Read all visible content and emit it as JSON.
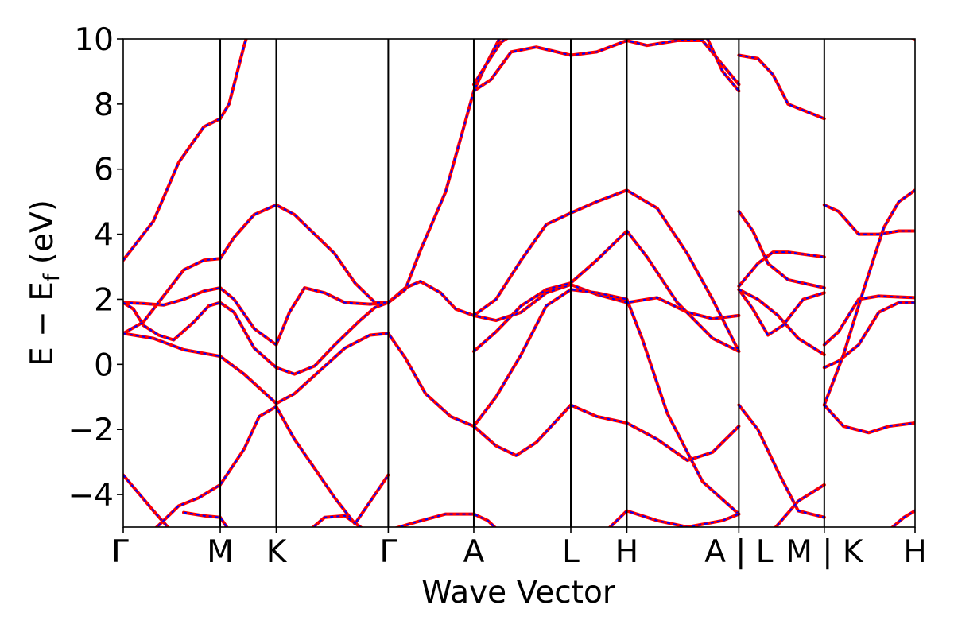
{
  "chart_data": {
    "type": "line",
    "title": "",
    "xlabel": "Wave Vector",
    "ylabel": "E − E",
    "ylabel_sub": "f",
    "ylabel_unit": " (eV)",
    "ylim": [
      -5,
      10
    ],
    "yticks": [
      10,
      8,
      6,
      4,
      2,
      0,
      -2,
      -4
    ],
    "ytick_labels": [
      "10",
      "8",
      "6",
      "4",
      "2",
      "0",
      "−2",
      "−4"
    ],
    "xlim": [
      0,
      7.86
    ],
    "kpoints": [
      {
        "x": 0.0,
        "label": "Γ"
      },
      {
        "x": 0.963,
        "label": "M"
      },
      {
        "x": 1.519,
        "label": "K"
      },
      {
        "x": 2.631,
        "label": "Γ"
      },
      {
        "x": 3.48,
        "label": "A"
      },
      {
        "x": 4.443,
        "label": "L"
      },
      {
        "x": 4.999,
        "label": "H"
      },
      {
        "x": 6.111,
        "label": "A | L"
      },
      {
        "x": 6.959,
        "label": "M | K"
      },
      {
        "x": 7.86,
        "label": "H"
      }
    ],
    "kpoint_labels_extra": [
      {
        "x": 6.64,
        "label": "M"
      },
      {
        "x": 7.35,
        "label": "K"
      }
    ],
    "grid": false,
    "legend": "none",
    "colors": {
      "band_solid": "#ff0000",
      "band_dashed": "#0000ff",
      "kline": "#000000"
    },
    "series": [
      {
        "values": [
          [
            0.0,
            3.2
          ],
          [
            0.3,
            4.4
          ],
          [
            0.55,
            6.2
          ],
          [
            0.8,
            7.3
          ],
          [
            0.963,
            7.55
          ],
          [
            1.05,
            8.0
          ],
          [
            1.2,
            9.8
          ],
          [
            1.27,
            10.5
          ]
        ]
      },
      {
        "values": [
          [
            0.0,
            1.9
          ],
          [
            0.2,
            1.87
          ],
          [
            0.4,
            1.82
          ],
          [
            0.6,
            2.0
          ],
          [
            0.8,
            2.25
          ],
          [
            0.963,
            2.35
          ],
          [
            1.1,
            2.0
          ],
          [
            1.3,
            1.1
          ],
          [
            1.519,
            0.6
          ],
          [
            1.65,
            1.6
          ],
          [
            1.8,
            2.35
          ],
          [
            2.0,
            2.2
          ],
          [
            2.2,
            1.9
          ],
          [
            2.45,
            1.85
          ],
          [
            2.631,
            1.9
          ],
          [
            2.8,
            2.35
          ],
          [
            2.95,
            2.55
          ],
          [
            3.15,
            2.2
          ],
          [
            3.3,
            1.7
          ],
          [
            3.48,
            1.5
          ],
          [
            3.7,
            1.35
          ],
          [
            3.95,
            1.6
          ],
          [
            4.2,
            2.2
          ],
          [
            4.443,
            2.45
          ],
          [
            4.7,
            2.15
          ],
          [
            4.999,
            1.9
          ],
          [
            5.3,
            2.05
          ],
          [
            5.6,
            1.6
          ],
          [
            5.85,
            1.4
          ],
          [
            6.111,
            1.5
          ]
        ]
      },
      {
        "values": [
          [
            0.0,
            1.9
          ],
          [
            0.1,
            1.7
          ],
          [
            0.2,
            1.2
          ],
          [
            0.35,
            0.9
          ],
          [
            0.5,
            0.75
          ],
          [
            0.7,
            1.3
          ],
          [
            0.85,
            1.8
          ],
          [
            0.963,
            1.9
          ],
          [
            1.1,
            1.6
          ],
          [
            1.3,
            0.5
          ],
          [
            1.519,
            -0.1
          ],
          [
            1.7,
            -0.3
          ],
          [
            1.9,
            -0.05
          ],
          [
            2.1,
            0.6
          ],
          [
            2.35,
            1.35
          ],
          [
            2.5,
            1.75
          ],
          [
            2.631,
            1.9
          ]
        ]
      },
      {
        "values": [
          [
            0.0,
            0.95
          ],
          [
            0.2,
            1.3
          ],
          [
            0.4,
            2.1
          ],
          [
            0.6,
            2.9
          ],
          [
            0.8,
            3.2
          ],
          [
            0.963,
            3.25
          ],
          [
            1.1,
            3.9
          ],
          [
            1.3,
            4.6
          ],
          [
            1.519,
            4.9
          ],
          [
            1.7,
            4.6
          ],
          [
            1.9,
            4.0
          ],
          [
            2.1,
            3.4
          ],
          [
            2.3,
            2.5
          ],
          [
            2.5,
            1.9
          ],
          [
            2.631,
            1.9
          ]
        ]
      },
      {
        "values": [
          [
            0.0,
            0.95
          ],
          [
            0.3,
            0.8
          ],
          [
            0.6,
            0.45
          ],
          [
            0.963,
            0.25
          ],
          [
            1.2,
            -0.3
          ],
          [
            1.519,
            -1.2
          ],
          [
            1.7,
            -0.9
          ],
          [
            1.95,
            -0.2
          ],
          [
            2.2,
            0.5
          ],
          [
            2.45,
            0.9
          ],
          [
            2.631,
            0.95
          ],
          [
            2.8,
            0.2
          ],
          [
            3.0,
            -0.9
          ],
          [
            3.25,
            -1.6
          ],
          [
            3.48,
            -1.9
          ],
          [
            3.7,
            -2.5
          ],
          [
            3.9,
            -2.8
          ],
          [
            4.1,
            -2.4
          ],
          [
            4.443,
            -1.25
          ],
          [
            4.7,
            -1.6
          ],
          [
            4.999,
            -1.8
          ],
          [
            5.3,
            -2.3
          ],
          [
            5.6,
            -2.95
          ],
          [
            5.85,
            -2.7
          ],
          [
            6.111,
            -1.9
          ]
        ]
      },
      {
        "values": [
          [
            0.0,
            -3.4
          ],
          [
            0.3,
            -4.5
          ],
          [
            0.5,
            -5.2
          ]
        ]
      },
      {
        "values": [
          [
            0.3,
            -5.1
          ],
          [
            0.55,
            -4.35
          ],
          [
            0.75,
            -4.1
          ],
          [
            0.963,
            -3.7
          ],
          [
            1.2,
            -2.6
          ],
          [
            1.35,
            -1.6
          ],
          [
            1.519,
            -1.3
          ],
          [
            1.7,
            -2.3
          ],
          [
            1.9,
            -3.2
          ],
          [
            2.1,
            -4.1
          ],
          [
            2.3,
            -4.9
          ],
          [
            2.631,
            -3.4
          ]
        ]
      },
      {
        "values": [
          [
            0.6,
            -4.55
          ],
          [
            0.8,
            -4.65
          ],
          [
            0.963,
            -4.7
          ],
          [
            1.05,
            -5.1
          ]
        ]
      },
      {
        "values": [
          [
            1.85,
            -5.1
          ],
          [
            2.0,
            -4.7
          ],
          [
            2.2,
            -4.65
          ],
          [
            2.4,
            -5.1
          ]
        ]
      },
      {
        "values": [
          [
            2.631,
            1.9
          ],
          [
            2.8,
            2.3
          ],
          [
            2.95,
            3.5
          ],
          [
            3.2,
            5.3
          ],
          [
            3.4,
            7.5
          ],
          [
            3.48,
            8.4
          ],
          [
            3.6,
            9.2
          ],
          [
            3.75,
            10.1
          ]
        ]
      },
      {
        "values": [
          [
            3.48,
            1.5
          ],
          [
            3.7,
            2.0
          ],
          [
            3.95,
            3.2
          ],
          [
            4.2,
            4.3
          ],
          [
            4.443,
            4.65
          ],
          [
            4.7,
            5.0
          ],
          [
            4.999,
            5.35
          ],
          [
            5.3,
            4.8
          ],
          [
            5.6,
            3.4
          ],
          [
            5.85,
            2.0
          ],
          [
            6.111,
            0.4
          ]
        ]
      },
      {
        "values": [
          [
            3.48,
            0.4
          ],
          [
            3.7,
            1.0
          ],
          [
            3.95,
            1.8
          ],
          [
            4.2,
            2.3
          ],
          [
            4.443,
            2.5
          ],
          [
            4.7,
            3.2
          ],
          [
            4.999,
            4.1
          ],
          [
            5.2,
            3.3
          ],
          [
            5.5,
            1.9
          ],
          [
            5.85,
            0.8
          ],
          [
            6.111,
            0.4
          ]
        ]
      },
      {
        "values": [
          [
            3.48,
            -1.9
          ],
          [
            3.7,
            -1.0
          ],
          [
            3.95,
            0.3
          ],
          [
            4.2,
            1.8
          ],
          [
            4.443,
            2.3
          ],
          [
            4.7,
            2.2
          ],
          [
            4.999,
            2.0
          ],
          [
            5.15,
            0.8
          ],
          [
            5.4,
            -1.5
          ],
          [
            5.75,
            -3.6
          ],
          [
            6.111,
            -4.6
          ]
        ]
      },
      {
        "values": [
          [
            3.48,
            8.4
          ],
          [
            3.65,
            8.75
          ],
          [
            3.85,
            9.6
          ],
          [
            4.1,
            9.75
          ],
          [
            4.443,
            9.5
          ],
          [
            4.7,
            9.6
          ],
          [
            4.999,
            9.95
          ],
          [
            5.2,
            9.8
          ],
          [
            5.5,
            9.95
          ],
          [
            5.75,
            9.95
          ],
          [
            5.95,
            9.2
          ],
          [
            6.111,
            8.6
          ]
        ]
      },
      {
        "values": [
          [
            3.48,
            8.6
          ],
          [
            3.6,
            9.2
          ],
          [
            3.75,
            9.9
          ],
          [
            3.85,
            10.1
          ]
        ]
      },
      {
        "values": [
          [
            5.8,
            10.0
          ],
          [
            5.95,
            9.0
          ],
          [
            6.111,
            8.4
          ]
        ]
      },
      {
        "values": [
          [
            2.631,
            -5.1
          ],
          [
            2.9,
            -4.85
          ],
          [
            3.2,
            -4.6
          ],
          [
            3.48,
            -4.6
          ],
          [
            3.62,
            -4.8
          ],
          [
            3.72,
            -5.1
          ]
        ]
      },
      {
        "values": [
          [
            4.8,
            -5.1
          ],
          [
            4.999,
            -4.5
          ],
          [
            5.3,
            -4.8
          ],
          [
            5.6,
            -5.0
          ],
          [
            5.95,
            -4.8
          ],
          [
            6.111,
            -4.6
          ]
        ]
      },
      {
        "values": [
          [
            6.111,
            9.5
          ],
          [
            6.3,
            9.4
          ],
          [
            6.45,
            8.9
          ],
          [
            6.6,
            8.0
          ],
          [
            6.959,
            7.55
          ]
        ]
      },
      {
        "values": [
          [
            6.111,
            4.7
          ],
          [
            6.25,
            4.1
          ],
          [
            6.4,
            3.1
          ],
          [
            6.6,
            2.6
          ],
          [
            6.959,
            2.35
          ]
        ]
      },
      {
        "values": [
          [
            6.111,
            2.4
          ],
          [
            6.3,
            3.1
          ],
          [
            6.45,
            3.45
          ],
          [
            6.6,
            3.45
          ],
          [
            6.959,
            3.3
          ]
        ]
      },
      {
        "values": [
          [
            6.111,
            2.3
          ],
          [
            6.25,
            1.7
          ],
          [
            6.4,
            0.9
          ],
          [
            6.55,
            1.2
          ],
          [
            6.75,
            2.0
          ],
          [
            6.959,
            2.2
          ]
        ]
      },
      {
        "values": [
          [
            6.111,
            2.3
          ],
          [
            6.3,
            2.0
          ],
          [
            6.5,
            1.5
          ],
          [
            6.7,
            0.8
          ],
          [
            6.959,
            0.3
          ]
        ]
      },
      {
        "values": [
          [
            6.111,
            -1.25
          ],
          [
            6.3,
            -2.0
          ],
          [
            6.5,
            -3.3
          ],
          [
            6.7,
            -4.5
          ],
          [
            6.959,
            -4.7
          ]
        ]
      },
      {
        "values": [
          [
            6.45,
            -5.1
          ],
          [
            6.7,
            -4.2
          ],
          [
            6.959,
            -3.7
          ]
        ]
      },
      {
        "values": [
          [
            6.959,
            4.9
          ],
          [
            7.1,
            4.7
          ],
          [
            7.3,
            4.0
          ],
          [
            7.5,
            4.0
          ],
          [
            7.7,
            4.1
          ],
          [
            7.86,
            4.1
          ]
        ]
      },
      {
        "values": [
          [
            6.959,
            0.6
          ],
          [
            7.1,
            1.0
          ],
          [
            7.3,
            2.0
          ],
          [
            7.5,
            2.1
          ],
          [
            7.86,
            2.05
          ]
        ]
      },
      {
        "values": [
          [
            6.959,
            -0.1
          ],
          [
            7.1,
            0.1
          ],
          [
            7.3,
            0.6
          ],
          [
            7.5,
            1.6
          ],
          [
            7.7,
            1.9
          ],
          [
            7.86,
            1.9
          ]
        ]
      },
      {
        "values": [
          [
            6.959,
            -1.25
          ],
          [
            7.15,
            0.3
          ],
          [
            7.35,
            2.3
          ],
          [
            7.55,
            4.2
          ],
          [
            7.7,
            5.0
          ],
          [
            7.86,
            5.35
          ]
        ]
      },
      {
        "values": [
          [
            6.959,
            -1.25
          ],
          [
            7.15,
            -1.9
          ],
          [
            7.4,
            -2.1
          ],
          [
            7.6,
            -1.9
          ],
          [
            7.86,
            -1.8
          ]
        ]
      },
      {
        "values": [
          [
            7.6,
            -5.1
          ],
          [
            7.75,
            -4.7
          ],
          [
            7.86,
            -4.5
          ]
        ]
      },
      {
        "values": [
          [
            7.75,
            10.1
          ],
          [
            7.86,
            10.0
          ]
        ]
      }
    ]
  }
}
